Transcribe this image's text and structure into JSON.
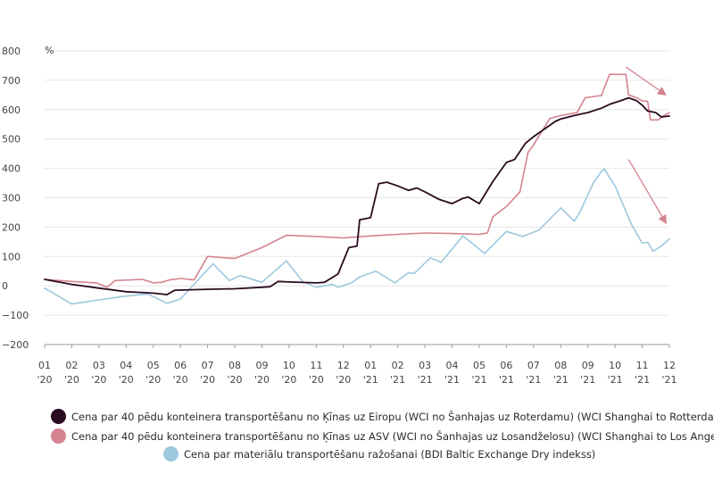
{
  "chart_data": {
    "type": "line",
    "ylabel": "%",
    "ylim": [
      -200,
      800
    ],
    "yticks": [
      -200,
      -100,
      0,
      100,
      200,
      300,
      400,
      500,
      600,
      700,
      800
    ],
    "xlim": [
      0,
      23
    ],
    "xticks": [
      {
        "m": "01",
        "y": "'20"
      },
      {
        "m": "02",
        "y": "'20"
      },
      {
        "m": "03",
        "y": "'20"
      },
      {
        "m": "04",
        "y": "'20"
      },
      {
        "m": "05",
        "y": "'20"
      },
      {
        "m": "06",
        "y": "'20"
      },
      {
        "m": "07",
        "y": "'20"
      },
      {
        "m": "08",
        "y": "'20"
      },
      {
        "m": "09",
        "y": "'20"
      },
      {
        "m": "10",
        "y": "'20"
      },
      {
        "m": "11",
        "y": "'20"
      },
      {
        "m": "12",
        "y": "'20"
      },
      {
        "m": "01",
        "y": "'21"
      },
      {
        "m": "02",
        "y": "'21"
      },
      {
        "m": "03",
        "y": "'21"
      },
      {
        "m": "04",
        "y": "'21"
      },
      {
        "m": "05",
        "y": "'21"
      },
      {
        "m": "06",
        "y": "'21"
      },
      {
        "m": "07",
        "y": "'21"
      },
      {
        "m": "08",
        "y": "'21"
      },
      {
        "m": "09",
        "y": "'21"
      },
      {
        "m": "10",
        "y": "'21"
      },
      {
        "m": "11",
        "y": "'21"
      },
      {
        "m": "12",
        "y": "'21"
      }
    ],
    "grid": true,
    "series": [
      {
        "name": "Cena par 40 pēdu konteinera transportēšanu no Ķīnas uz Eiropu (WCI no Šanhajas uz Roterdamu) (WCI Shanghai to Rotterdam)",
        "color": "#2a0a1f",
        "points": [
          [
            0,
            22
          ],
          [
            1,
            5
          ],
          [
            2,
            -8
          ],
          [
            3,
            -20
          ],
          [
            4,
            -25
          ],
          [
            4.3,
            -28
          ],
          [
            4.5,
            -30
          ],
          [
            4.8,
            -15
          ],
          [
            6,
            -12
          ],
          [
            7,
            -10
          ],
          [
            8,
            -5
          ],
          [
            8.3,
            -3
          ],
          [
            8.6,
            15
          ],
          [
            9,
            13
          ],
          [
            10,
            10
          ],
          [
            10.3,
            12
          ],
          [
            10.8,
            40
          ],
          [
            11.2,
            130
          ],
          [
            11.5,
            135
          ],
          [
            11.6,
            225
          ],
          [
            12,
            232
          ],
          [
            12.3,
            348
          ],
          [
            12.6,
            353
          ],
          [
            13,
            340
          ],
          [
            13.4,
            325
          ],
          [
            13.7,
            333
          ],
          [
            14,
            320
          ],
          [
            14.5,
            295
          ],
          [
            15,
            280
          ],
          [
            15.4,
            298
          ],
          [
            15.6,
            302
          ],
          [
            16,
            280
          ],
          [
            16.5,
            355
          ],
          [
            17,
            420
          ],
          [
            17.3,
            430
          ],
          [
            17.7,
            485
          ],
          [
            18,
            508
          ],
          [
            18.5,
            540
          ],
          [
            18.8,
            560
          ],
          [
            19,
            568
          ],
          [
            19.5,
            580
          ],
          [
            20,
            590
          ],
          [
            20.5,
            605
          ],
          [
            20.8,
            618
          ],
          [
            21.2,
            630
          ],
          [
            21.5,
            640
          ],
          [
            21.8,
            630
          ],
          [
            22,
            615
          ],
          [
            22.2,
            595
          ],
          [
            22.5,
            590
          ],
          [
            22.7,
            575
          ],
          [
            23,
            578
          ]
        ]
      },
      {
        "name": "Cena par 40 pēdu konteinera transportēšanu no Ķīnas uz ASV (WCI no Šanhajas uz Losandželosu) (WCI Shanghai to Los Angeles)",
        "color": "#d4838f",
        "points": [
          [
            0,
            22
          ],
          [
            1,
            15
          ],
          [
            1.9,
            10
          ],
          [
            2.3,
            -5
          ],
          [
            2.6,
            18
          ],
          [
            3.6,
            22
          ],
          [
            4,
            10
          ],
          [
            4.3,
            12
          ],
          [
            4.6,
            20
          ],
          [
            5,
            25
          ],
          [
            5.5,
            20
          ],
          [
            6,
            100
          ],
          [
            7,
            93
          ],
          [
            8,
            130
          ],
          [
            8.9,
            172
          ],
          [
            10,
            168
          ],
          [
            11,
            163
          ],
          [
            12,
            170
          ],
          [
            13,
            175
          ],
          [
            14,
            180
          ],
          [
            15,
            178
          ],
          [
            16,
            175
          ],
          [
            16.3,
            180
          ],
          [
            16.5,
            235
          ],
          [
            17,
            270
          ],
          [
            17.5,
            320
          ],
          [
            17.8,
            455
          ],
          [
            18,
            480
          ],
          [
            18.6,
            570
          ],
          [
            19,
            580
          ],
          [
            19.6,
            590
          ],
          [
            19.9,
            640
          ],
          [
            20.5,
            648
          ],
          [
            20.8,
            720
          ],
          [
            21.2,
            720
          ],
          [
            21.4,
            720
          ],
          [
            21.5,
            650
          ],
          [
            21.8,
            640
          ],
          [
            22,
            630
          ],
          [
            22.2,
            628
          ],
          [
            22.3,
            565
          ],
          [
            22.6,
            565
          ],
          [
            22.8,
            580
          ],
          [
            23,
            590
          ]
        ]
      },
      {
        "name": "Cena par materiālu transportēšanu ražošanai (BDI Baltic Exchange Dry indekss)",
        "color": "#9dc8de",
        "points": [
          [
            0,
            -8
          ],
          [
            1,
            -62
          ],
          [
            2,
            -48
          ],
          [
            3,
            -35
          ],
          [
            3.8,
            -28
          ],
          [
            4.5,
            -60
          ],
          [
            5,
            -45
          ],
          [
            6.2,
            75
          ],
          [
            6.8,
            18
          ],
          [
            7.2,
            35
          ],
          [
            8,
            12
          ],
          [
            8.9,
            85
          ],
          [
            9.5,
            15
          ],
          [
            10,
            -5
          ],
          [
            10.6,
            5
          ],
          [
            10.8,
            -5
          ],
          [
            11.3,
            10
          ],
          [
            11.6,
            30
          ],
          [
            12.2,
            50
          ],
          [
            12.9,
            10
          ],
          [
            13.4,
            45
          ],
          [
            13.6,
            42
          ],
          [
            14.2,
            95
          ],
          [
            14.6,
            80
          ],
          [
            15.4,
            170
          ],
          [
            16.2,
            110
          ],
          [
            17,
            185
          ],
          [
            17.6,
            168
          ],
          [
            18.2,
            190
          ],
          [
            19,
            265
          ],
          [
            19.5,
            220
          ],
          [
            19.7,
            250
          ],
          [
            20.2,
            350
          ],
          [
            20.5,
            390
          ],
          [
            20.6,
            398
          ],
          [
            21,
            340
          ],
          [
            21.6,
            210
          ],
          [
            22,
            145
          ],
          [
            22.2,
            148
          ],
          [
            22.4,
            118
          ],
          [
            22.7,
            135
          ],
          [
            23,
            160
          ]
        ]
      }
    ],
    "annotations": [
      {
        "type": "arrow",
        "color": "#d4838f",
        "from": [
          21.4,
          745
        ],
        "to": [
          22.9,
          648
        ]
      },
      {
        "type": "arrow",
        "color": "#d4838f",
        "from": [
          21.5,
          430
        ],
        "to": [
          22.9,
          210
        ]
      }
    ]
  }
}
